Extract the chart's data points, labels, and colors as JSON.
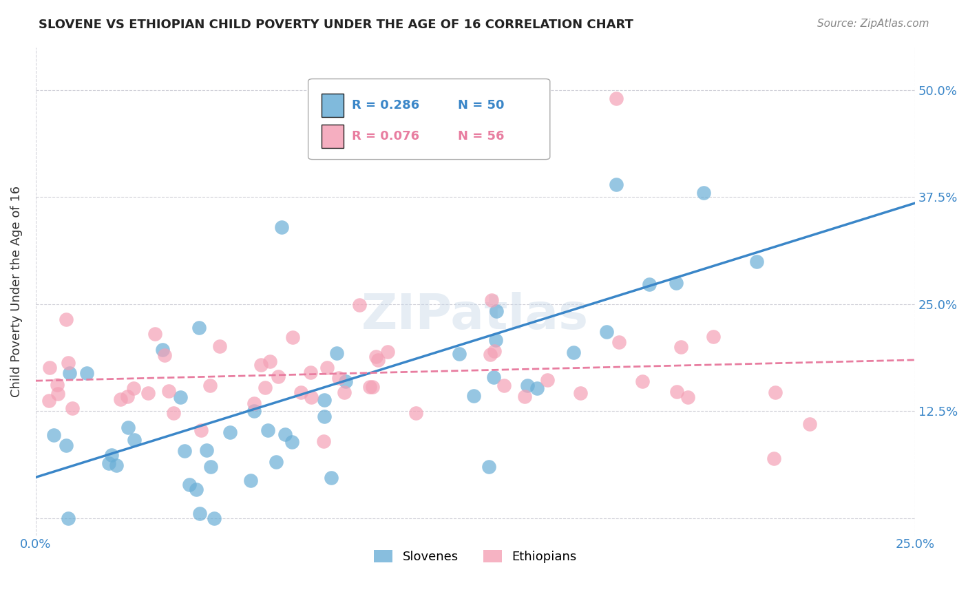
{
  "title": "SLOVENE VS ETHIOPIAN CHILD POVERTY UNDER THE AGE OF 16 CORRELATION CHART",
  "source": "Source: ZipAtlas.com",
  "ylabel": "Child Poverty Under the Age of 16",
  "xlim": [
    0.0,
    0.25
  ],
  "ylim": [
    -0.02,
    0.55
  ],
  "yticks": [
    0.0,
    0.125,
    0.25,
    0.375,
    0.5
  ],
  "ytick_labels": [
    "",
    "12.5%",
    "25.0%",
    "37.5%",
    "50.0%"
  ],
  "xticks": [
    0.0,
    0.25
  ],
  "xtick_labels": [
    "0.0%",
    "25.0%"
  ],
  "slovene_color": "#6aaed6",
  "ethiopian_color": "#f4a0b5",
  "trend_slovene_color": "#3a86c8",
  "trend_ethiopian_color": "#e87da0",
  "R_slovene": 0.286,
  "N_slovene": 50,
  "R_ethiopian": 0.076,
  "N_ethiopian": 56,
  "watermark": "ZIPatlas",
  "background_color": "#ffffff",
  "grid_color": "#d0d0d8"
}
